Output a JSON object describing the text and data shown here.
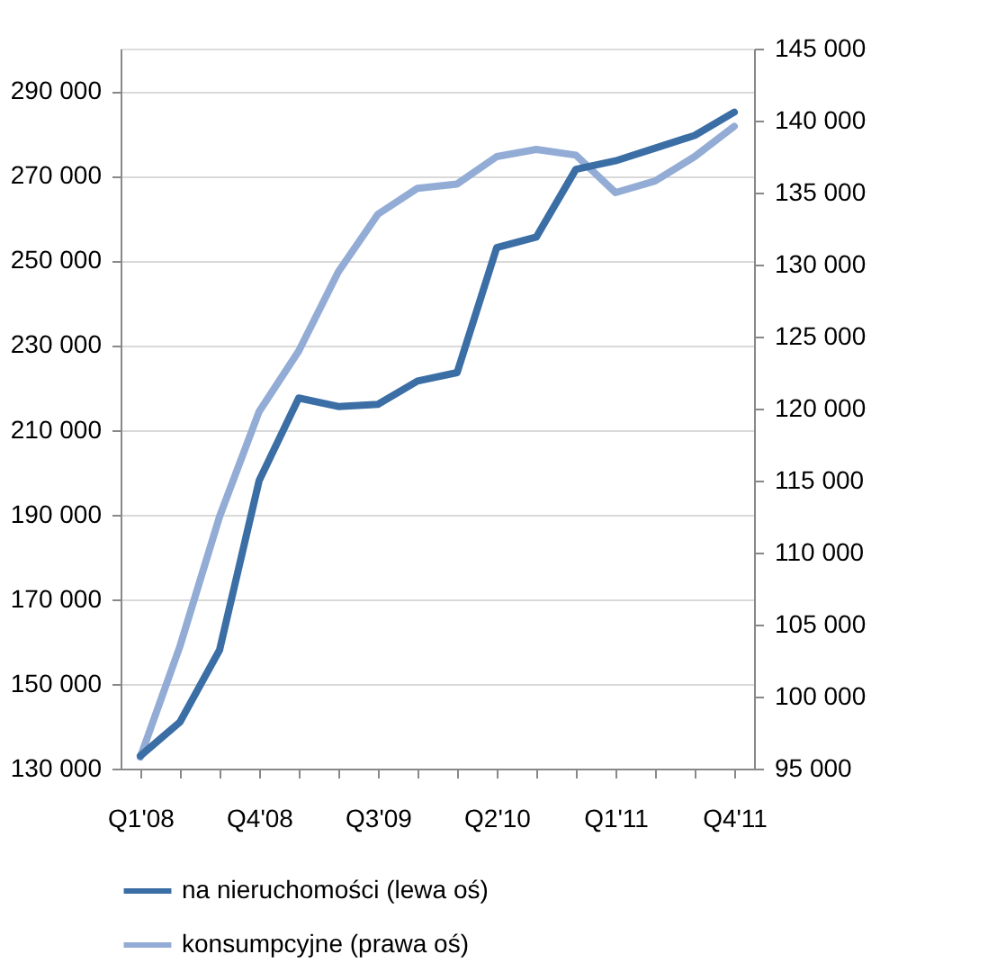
{
  "chart_data": {
    "type": "line",
    "categories": [
      "Q1'08",
      null,
      null,
      "Q4'08",
      null,
      null,
      "Q3'09",
      null,
      null,
      "Q2'10",
      null,
      null,
      "Q1'11",
      null,
      null,
      "Q4'11"
    ],
    "series": [
      {
        "name": "na nieruchomości (lewa oś)",
        "color": "#3a6ea5",
        "values": [
          133000,
          141000,
          158000,
          198000,
          217500,
          215500,
          216000,
          221500,
          223500,
          253000,
          255500,
          271500,
          273500,
          276500,
          279500,
          285000
        ]
      },
      {
        "name": "konsumpcyjne (prawa oś)",
        "color": "#93acd5",
        "axis": "y2",
        "values": [
          95800,
          103500,
          112500,
          119800,
          124000,
          129500,
          133500,
          135300,
          135600,
          137500,
          138000,
          137600,
          135000,
          135800,
          137500,
          139600
        ]
      }
    ],
    "ylim": [
      130000,
      300000
    ],
    "yticks": [
      {
        "value": 130000,
        "label": "130 000"
      },
      {
        "value": 150000,
        "label": "150 000"
      },
      {
        "value": 170000,
        "label": "170 000"
      },
      {
        "value": 190000,
        "label": "190 000"
      },
      {
        "value": 210000,
        "label": "210 000"
      },
      {
        "value": 230000,
        "label": "230 000"
      },
      {
        "value": 250000,
        "label": "250 000"
      },
      {
        "value": 270000,
        "label": "270 000"
      },
      {
        "value": 290000,
        "label": "290 000"
      }
    ],
    "y2lim": [
      95000,
      145000
    ],
    "y2ticks": [
      {
        "value": 95000,
        "label": "95 000"
      },
      {
        "value": 100000,
        "label": "100 000"
      },
      {
        "value": 105000,
        "label": "105 000"
      },
      {
        "value": 110000,
        "label": "110 000"
      },
      {
        "value": 115000,
        "label": "115 000"
      },
      {
        "value": 120000,
        "label": "120 000"
      },
      {
        "value": 125000,
        "label": "125 000"
      },
      {
        "value": 130000,
        "label": "130 000"
      },
      {
        "value": 135000,
        "label": "135 000"
      },
      {
        "value": 140000,
        "label": "140 000"
      },
      {
        "value": 145000,
        "label": "145 000"
      }
    ],
    "grid": "y",
    "legend": "bottom",
    "line_style": "solid",
    "marker": "none"
  }
}
